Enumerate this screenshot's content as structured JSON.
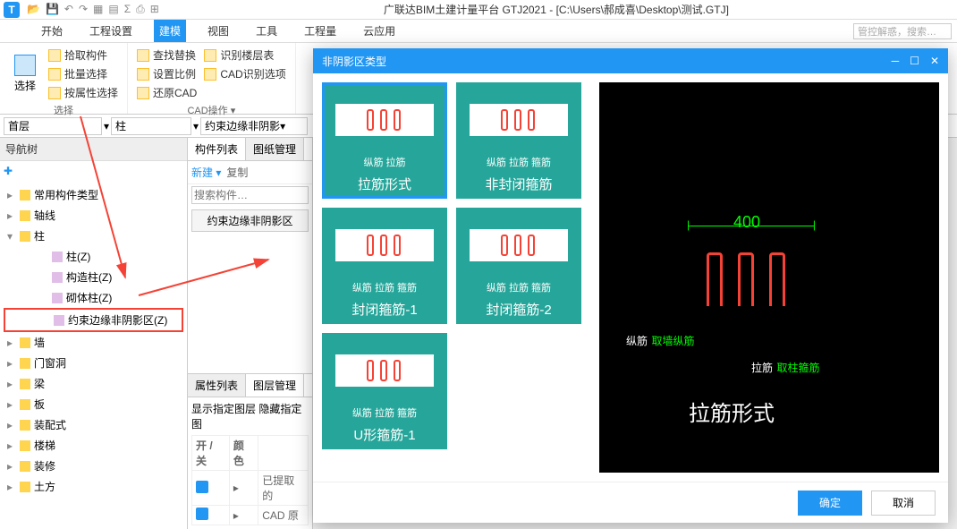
{
  "titlebar": {
    "app_title": "广联达BIM土建计量平台 GTJ2021 - [C:\\Users\\郝成喜\\Desktop\\测试.GTJ]"
  },
  "search_hint": "管控解惑，搜索…",
  "menu": {
    "items": [
      "开始",
      "工程设置",
      "建模",
      "视图",
      "工具",
      "工程量",
      "云应用"
    ],
    "active_index": 2
  },
  "ribbon": {
    "select": {
      "label": "选择",
      "big": "选择",
      "items": [
        "拾取构件",
        "批量选择",
        "按属性选择"
      ]
    },
    "cad": {
      "label": "CAD操作 ▾",
      "col1": [
        "查找替换",
        "设置比例",
        "还原CAD"
      ],
      "col2": [
        "识别楼层表",
        "CAD识别选项"
      ]
    }
  },
  "dropdowns": {
    "floor": "首层",
    "cat": "柱",
    "type": "约束边缘非阴影▾"
  },
  "nav": {
    "title": "导航树",
    "items": [
      {
        "label": "常用构件类型",
        "level": 0
      },
      {
        "label": "轴线",
        "level": 0
      },
      {
        "label": "柱",
        "level": 0,
        "expanded": true
      },
      {
        "label": "柱(Z)",
        "level": 2
      },
      {
        "label": "构造柱(Z)",
        "level": 2
      },
      {
        "label": "砌体柱(Z)",
        "level": 2
      },
      {
        "label": "约束边缘非阴影区(Z)",
        "level": 2,
        "highlight": true
      },
      {
        "label": "墙",
        "level": 0
      },
      {
        "label": "门窗洞",
        "level": 0
      },
      {
        "label": "梁",
        "level": 0
      },
      {
        "label": "板",
        "level": 0
      },
      {
        "label": "装配式",
        "level": 0
      },
      {
        "label": "楼梯",
        "level": 0
      },
      {
        "label": "装修",
        "level": 0
      },
      {
        "label": "土方",
        "level": 0
      }
    ]
  },
  "component_list": {
    "tabs": [
      "构件列表",
      "图纸管理"
    ],
    "toolbar": [
      "新建 ▾",
      "复制"
    ],
    "search_placeholder": "搜索构件…",
    "items": [
      "约束边缘非阴影区"
    ]
  },
  "prop": {
    "tabs": [
      "属性列表",
      "图层管理"
    ],
    "header": "显示指定图层   隐藏指定图",
    "columns": [
      "开 / 关",
      "颜色",
      ""
    ],
    "rows": [
      {
        "name": "已提取的"
      },
      {
        "name": "CAD 原"
      }
    ]
  },
  "dialog": {
    "title": "非阴影区类型",
    "options": [
      {
        "title": "拉筋形式",
        "labels": "纵筋   拉筋",
        "selected": true
      },
      {
        "title": "非封闭箍筋",
        "labels": "纵筋  拉筋  箍筋"
      },
      {
        "title": "封闭箍筋-1",
        "labels": "纵筋  拉筋  箍筋"
      },
      {
        "title": "封闭箍筋-2",
        "labels": "纵筋  拉筋  箍筋"
      },
      {
        "title": "U形箍筋-1",
        "labels": "纵筋  拉筋  箍筋"
      }
    ],
    "preview": {
      "dim": "400",
      "line1a": "纵筋",
      "line1b": "取墙纵筋",
      "line2a": "拉筋",
      "line2b": "取柱箍筋",
      "big_title": "拉筋形式"
    },
    "ok": "确定",
    "cancel": "取消"
  }
}
